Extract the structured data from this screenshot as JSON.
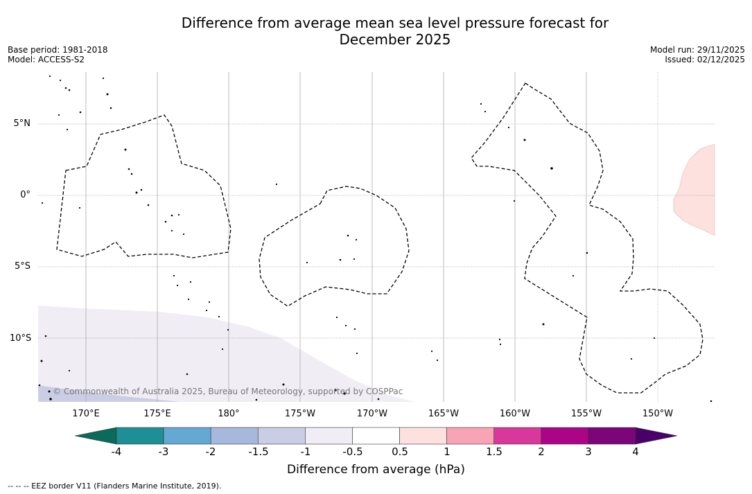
{
  "title": {
    "line1": "Difference from average mean sea level pressure forecast for",
    "line2": "December 2025"
  },
  "meta_left": {
    "base_period": "Base period: 1981-2018",
    "model": "Model: ACCESS-S2"
  },
  "meta_right": {
    "model_run": "Model run: 29/11/2025",
    "issued": "Issued: 02/12/2025"
  },
  "axes": {
    "lat_labels": [
      "5°N",
      "0°",
      "5°S",
      "10°S"
    ],
    "lon_labels": [
      "170°E",
      "175°E",
      "180°",
      "175°W",
      "170°W",
      "165°W",
      "160°W",
      "155°W",
      "150°W"
    ]
  },
  "credit": "© Commonwealth of Australia 2025, Bureau of Meteorology, supported by COSPPac",
  "colorbar": {
    "title": "Difference from average (hPa)",
    "ticks": [
      "-4",
      "-3",
      "-2",
      "-1.5",
      "-1",
      "-0.5",
      "0.5",
      "1",
      "1.5",
      "2",
      "3",
      "4"
    ],
    "colors": {
      "under": "#0b6b5a",
      "bins": [
        "#1e8f96",
        "#63a9d3",
        "#a6b9dc",
        "#cbcde5",
        "#f1edf5",
        "#ffffff",
        "#fde1df",
        "#f9a3b6",
        "#d8379c",
        "#ac0487",
        "#7b0579"
      ],
      "over": "#49006a"
    }
  },
  "footer": "--  --  -- EEZ border V11 (Flanders Marine Institute, 2019)."
}
